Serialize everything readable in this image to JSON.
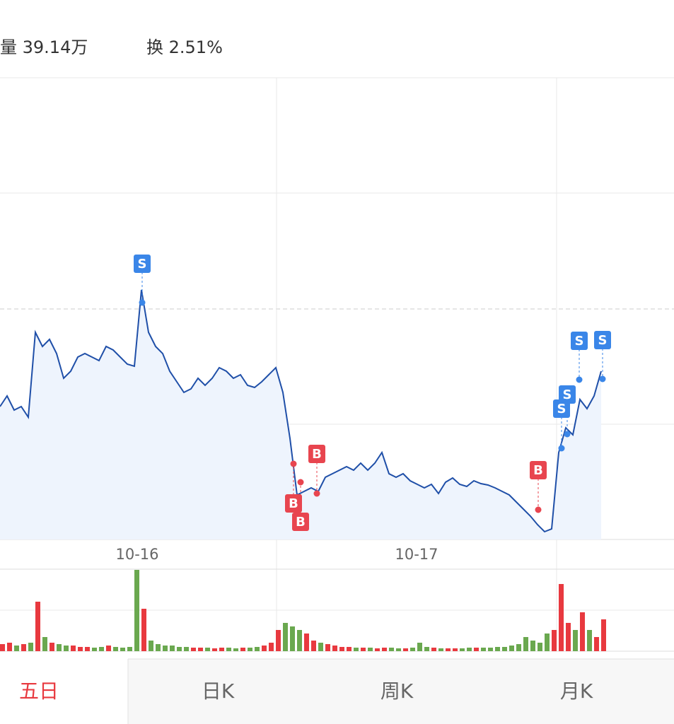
{
  "header": {
    "volume": "量 39.14万",
    "turnover": "换 2.51%"
  },
  "chart_data": {
    "type": "line",
    "color": "#1f4fa8",
    "area_color": "#eef4fd",
    "values": [
      188,
      203,
      183,
      188,
      173,
      293,
      273,
      283,
      263,
      228,
      238,
      258,
      263,
      258,
      253,
      273,
      268,
      258,
      248,
      245,
      353,
      293,
      273,
      263,
      238,
      223,
      208,
      213,
      228,
      218,
      228,
      243,
      238,
      228,
      233,
      218,
      215,
      223,
      233,
      243,
      208,
      143,
      63,
      68,
      73,
      68,
      88,
      93,
      98,
      103,
      98,
      108,
      98,
      108,
      123,
      93,
      88,
      93,
      83,
      78,
      73,
      78,
      65,
      81,
      87,
      78,
      75,
      83,
      79,
      77,
      73,
      68,
      63,
      53,
      43,
      33,
      21,
      11,
      15,
      123,
      158,
      148,
      198,
      185,
      203,
      238
    ],
    "ylim": [
      0,
      653
    ],
    "x_labels": [
      "10-16",
      "10-17"
    ],
    "trade_marks": [
      {
        "label": "S"
      },
      {
        "label": "B"
      },
      {
        "label": "B"
      },
      {
        "label": "B"
      },
      {
        "label": "B"
      },
      {
        "label": "S"
      },
      {
        "label": "S"
      },
      {
        "label": "S"
      },
      {
        "label": "S"
      }
    ],
    "sell_color": "#3a86e8",
    "buy_color": "#e8454f",
    "volume": {
      "type": "bar",
      "values": [
        10,
        12,
        8,
        10,
        12,
        70,
        20,
        12,
        10,
        8,
        8,
        6,
        6,
        5,
        6,
        8,
        6,
        5,
        6,
        115,
        60,
        15,
        10,
        8,
        8,
        6,
        6,
        5,
        5,
        5,
        4,
        5,
        5,
        4,
        5,
        5,
        6,
        8,
        12,
        30,
        40,
        35,
        30,
        25,
        15,
        12,
        10,
        8,
        6,
        6,
        5,
        5,
        5,
        4,
        5,
        5,
        4,
        4,
        5,
        12,
        6,
        5,
        4,
        4,
        4,
        4,
        5,
        5,
        5,
        5,
        6,
        6,
        8,
        10,
        20,
        15,
        12,
        25,
        30,
        95,
        40,
        30,
        55,
        30,
        20,
        45
      ],
      "ylim": [
        0,
        116
      ],
      "up_color": "#e8393f",
      "down_color": "#6aa84f"
    }
  },
  "tabs": [
    "五日",
    "日K",
    "周K",
    "月K"
  ]
}
